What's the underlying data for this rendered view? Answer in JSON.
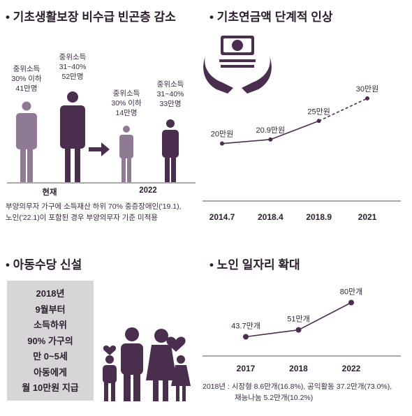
{
  "sections": {
    "poverty": {
      "title": "• 기초생활보장 비수급 빈곤층 감소"
    },
    "pension": {
      "title": "• 기초연금액 단계적 인상"
    },
    "child": {
      "title": "• 아동수당 신설"
    },
    "elderly": {
      "title": "• 노인 일자리 확대"
    }
  },
  "poverty": {
    "groups": [
      {
        "label": "현재",
        "people": [
          {
            "lines": [
              "중위소득",
              "30% 이하",
              "41만명"
            ],
            "value": 41,
            "color": "#8e7a92"
          },
          {
            "lines": [
              "중위소득",
              "31~40%",
              "52만명"
            ],
            "value": 52,
            "color": "#4a2e4d"
          }
        ]
      },
      {
        "label": "2022",
        "people": [
          {
            "lines": [
              "중위소득",
              "30% 이하",
              "14만명"
            ],
            "value": 14,
            "color": "#8e7a92"
          },
          {
            "lines": [
              "중위소득",
              "31~40%",
              "33만명"
            ],
            "value": 33,
            "color": "#4a2e4d"
          }
        ]
      }
    ],
    "note_lines": [
      "부양의무자 가구에 소득재산 하위 70% 중증장애인('19.1),",
      "노인('22.1)이 포함된 경우 부양의무자 기준 미적용"
    ]
  },
  "child": {
    "lines": [
      "2018년",
      "9월부터",
      "소득하위",
      "90% 가구의",
      "만 0~5세",
      "아동에게",
      "월 10만원 지급"
    ]
  },
  "elderly": {
    "note_lines": [
      "2018년 : 시장형 8.6만개(16.8%), 공익활동 37.2만개(73.0%),",
      "재능나눔 5.2만개(10.2%)"
    ]
  },
  "icons": {
    "money": "money-hands-icon",
    "family": "family-icon",
    "arrow": "arrow-right-icon"
  },
  "colors": {
    "dark": "#4a2e4d",
    "light": "#8e7a92",
    "box": "#d7d5d8"
  },
  "chart_data": [
    {
      "type": "line",
      "x": [
        "2014.7",
        "2018.4",
        "2018.9",
        "2021"
      ],
      "values": [
        20,
        20.9,
        25,
        30
      ],
      "labels": [
        "20만원",
        "20.9만원",
        "25만원",
        "30만원"
      ],
      "dashed_last_segment": true,
      "ylim": [
        15,
        32
      ]
    },
    {
      "type": "line",
      "x": [
        "2017",
        "2018",
        "2022"
      ],
      "values": [
        43.7,
        51,
        80
      ],
      "labels": [
        "43.7만개",
        "51만개",
        "80만개"
      ],
      "ylim": [
        30,
        90
      ]
    }
  ]
}
